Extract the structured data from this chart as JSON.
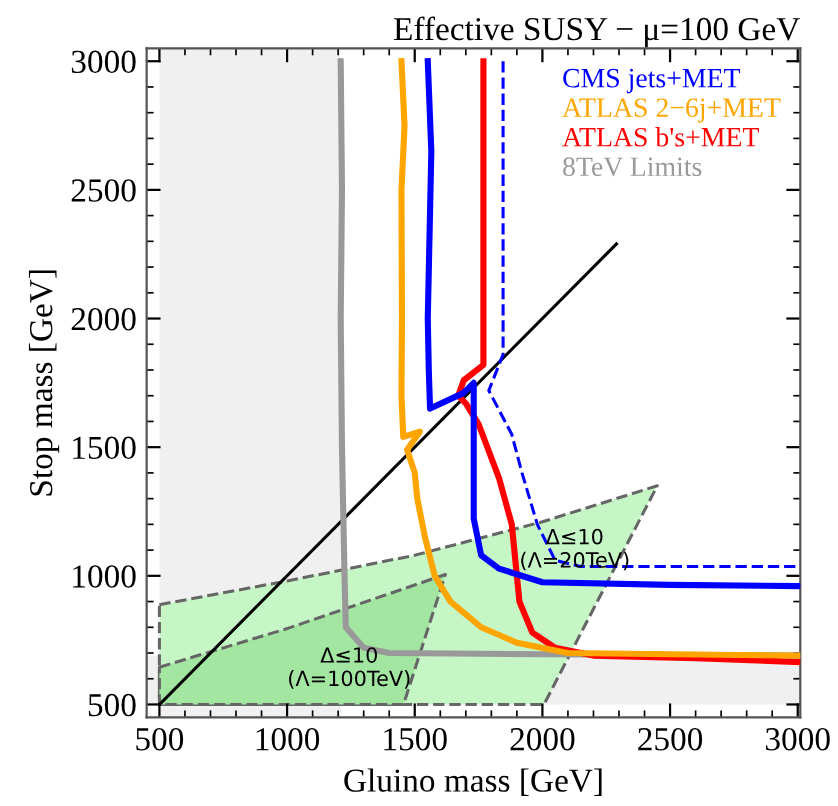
{
  "chart_data": {
    "type": "line",
    "title": "Effective SUSY − μ=100 GeV",
    "xlabel": "Gluino mass [GeV]",
    "ylabel": "Stop mass [GeV]",
    "xlim": [
      450,
      3010
    ],
    "ylim": [
      450,
      3050
    ],
    "xticks": [
      500,
      1000,
      1500,
      2000,
      2500,
      3000
    ],
    "yticks": [
      500,
      1000,
      1500,
      2000,
      2500,
      3000
    ],
    "grid": false,
    "legend": "top right",
    "bands": [
      {
        "axis": "x",
        "from": 500,
        "to": 1210,
        "color": "#f0f0f0"
      },
      {
        "axis": "y",
        "from": 500,
        "to": 690,
        "color": "#f0f0f0"
      }
    ],
    "annotations": [
      "Δ≤10\n(Λ=20TeV)",
      "Δ≤10\n(Λ=100TeV)"
    ],
    "series": [
      {
        "type": "area",
        "color": "#c6f5c6",
        "line_style": "dashed",
        "x": [
          500,
          1000,
          1500,
          2000,
          2450,
          2006,
          500
        ],
        "values": [
          888,
          980,
          1080,
          1210,
          1350,
          500,
          500
        ]
      },
      {
        "type": "area",
        "color": "#a2e6a2",
        "line_style": "dashed",
        "x": [
          500,
          1000,
          1620,
          1456,
          500
        ],
        "values": [
          645,
          795,
          1005,
          500,
          500
        ]
      },
      {
        "color": "#000000",
        "line_style": "solid",
        "x": [
          500,
          2290
        ],
        "values": [
          500,
          2290
        ]
      },
      {
        "color": "#0000ff",
        "line_style": "dashed",
        "x": [
          1846,
          1846,
          1790,
          1880,
          1920,
          1980,
          2050,
          2150,
          3000
        ],
        "values": [
          3000,
          1860,
          1720,
          1550,
          1400,
          1200,
          1060,
          1036,
          1036
        ]
      },
      {
        "name": "CMS jets+MET",
        "color": "#0000ff",
        "line_style": "solid",
        "x": [
          1551,
          1565,
          1551,
          1555,
          1560,
          1690,
          1731,
          1731,
          1731,
          1760,
          1830,
          2000,
          2500,
          3000
        ],
        "values": [
          3000,
          2650,
          2000,
          1800,
          1650,
          1710,
          1750,
          1500,
          1222,
          1080,
          1028,
          975,
          965,
          960
        ]
      },
      {
        "name": "ATLAS 2−6j+MET",
        "color": "#ffa500",
        "line_style": "solid",
        "x": [
          1448,
          1460,
          1448,
          1450,
          1448,
          1455,
          1520,
          1470,
          1500,
          1510,
          1540,
          1578,
          1640,
          1760,
          1900,
          2100,
          2500,
          3000
        ],
        "values": [
          3000,
          2750,
          2500,
          2000,
          1700,
          1540,
          1560,
          1490,
          1400,
          1300,
          1150,
          1000,
          900,
          800,
          740,
          700,
          695,
          690
        ]
      },
      {
        "name": "ATLAS b's+MET",
        "color": "#ff0000",
        "line_style": "solid",
        "x": [
          1769,
          1769,
          1692,
          1670,
          1700,
          1750,
          1830,
          1880,
          1900,
          1910,
          1960,
          2050,
          2200,
          2600,
          3000
        ],
        "values": [
          3000,
          1820,
          1760,
          1700,
          1670,
          1590,
          1380,
          1200,
          1000,
          900,
          780,
          720,
          690,
          680,
          665
        ]
      },
      {
        "name": "8TeV Limits",
        "color": "#999999",
        "line_style": "solid",
        "x": [
          1210,
          1215,
          1210,
          1215,
          1225,
          1230,
          1300,
          1400,
          2000,
          3000
        ],
        "values": [
          3000,
          2500,
          2000,
          1500,
          1000,
          800,
          720,
          700,
          695,
          690
        ]
      }
    ]
  }
}
